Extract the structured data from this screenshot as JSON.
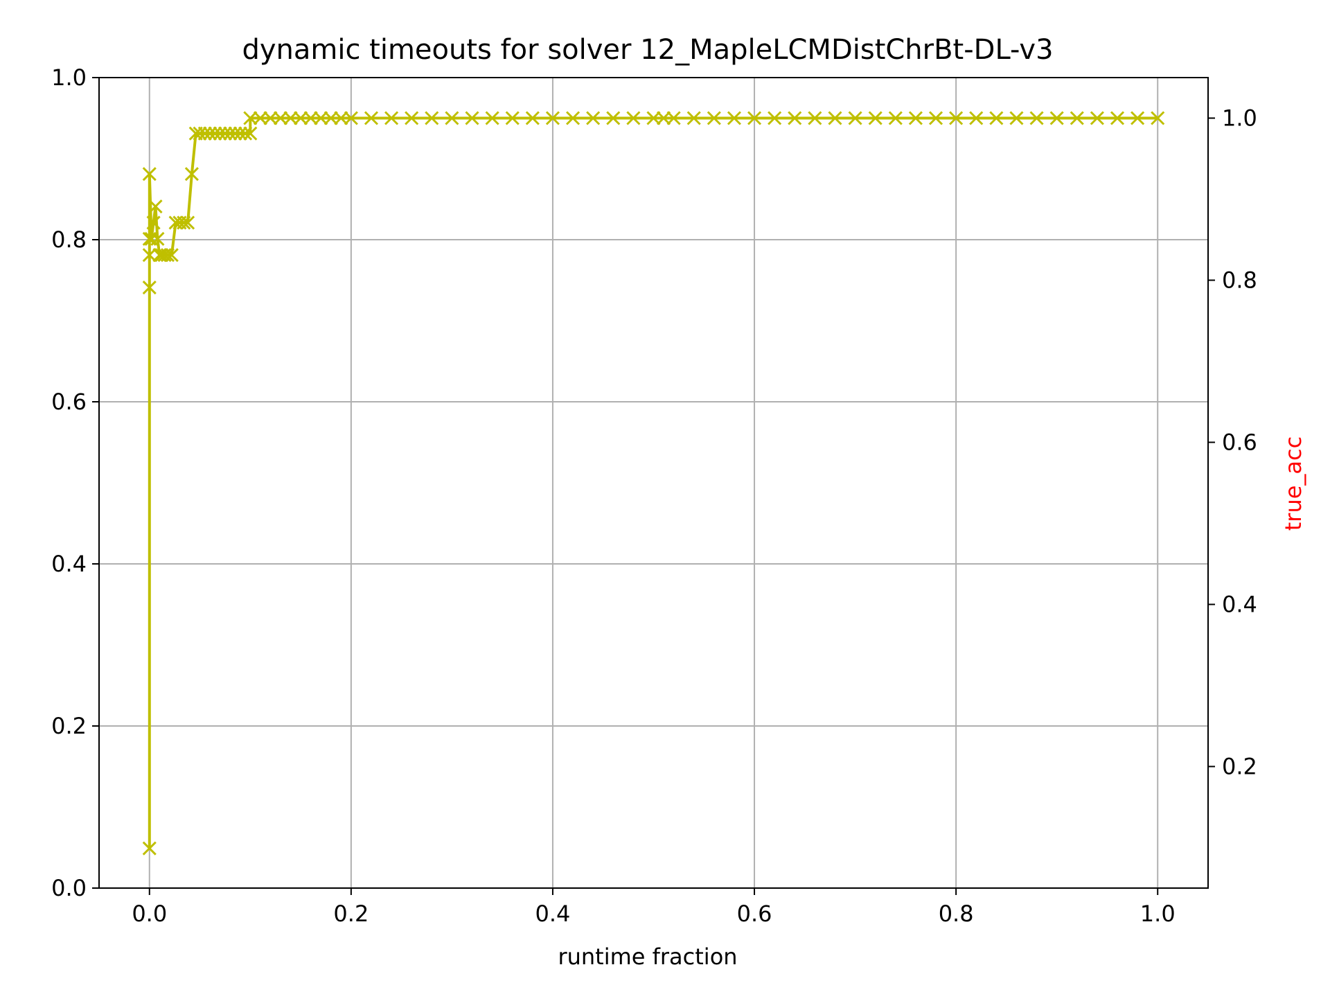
{
  "chart_data": {
    "type": "line",
    "title": "dynamic timeouts for solver 12_MapleLCMDistChrBt-DL-v3",
    "xlabel": "runtime fraction",
    "ylabel": "",
    "y2label": "true_acc",
    "xlim": [
      -0.05,
      1.05
    ],
    "ylim": [
      0.0,
      1.0
    ],
    "y2lim": [
      0.05,
      1.05
    ],
    "x_ticks": [
      "0.0",
      "0.2",
      "0.4",
      "0.6",
      "0.8",
      "1.0"
    ],
    "y_ticks": [
      "0.0",
      "0.2",
      "0.4",
      "0.6",
      "0.8",
      "1.0"
    ],
    "y2_ticks": [
      "0.2",
      "0.4",
      "0.6",
      "0.8",
      "1.0"
    ],
    "grid": true,
    "marker": "x",
    "series": [
      {
        "color": "#bfbf00",
        "axis": "right",
        "x": [
          0.0,
          0.0,
          0.0,
          0.0,
          0.0,
          0.002,
          0.004,
          0.006,
          0.008,
          0.01,
          0.012,
          0.015,
          0.018,
          0.022,
          0.026,
          0.03,
          0.034,
          0.038,
          0.042,
          0.046,
          0.05,
          0.055,
          0.06,
          0.065,
          0.07,
          0.075,
          0.08,
          0.085,
          0.09,
          0.095,
          0.1,
          0.1,
          0.11,
          0.12,
          0.13,
          0.14,
          0.15,
          0.16,
          0.17,
          0.18,
          0.19,
          0.2,
          0.22,
          0.24,
          0.26,
          0.28,
          0.3,
          0.32,
          0.34,
          0.36,
          0.38,
          0.4,
          0.42,
          0.44,
          0.46,
          0.48,
          0.5,
          0.51,
          0.52,
          0.54,
          0.56,
          0.58,
          0.6,
          0.62,
          0.64,
          0.66,
          0.68,
          0.7,
          0.72,
          0.74,
          0.76,
          0.78,
          0.8,
          0.82,
          0.84,
          0.86,
          0.88,
          0.9,
          0.92,
          0.94,
          0.96,
          0.98,
          1.0
        ],
        "y": [
          0.099,
          0.791,
          0.831,
          0.851,
          0.931,
          0.851,
          0.871,
          0.891,
          0.851,
          0.831,
          0.831,
          0.831,
          0.831,
          0.831,
          0.871,
          0.871,
          0.871,
          0.871,
          0.931,
          0.981,
          0.981,
          0.981,
          0.981,
          0.981,
          0.981,
          0.981,
          0.981,
          0.981,
          0.981,
          0.981,
          0.981,
          1.0,
          1.0,
          1.0,
          1.0,
          1.0,
          1.0,
          1.0,
          1.0,
          1.0,
          1.0,
          1.0,
          1.0,
          1.0,
          1.0,
          1.0,
          1.0,
          1.0,
          1.0,
          1.0,
          1.0,
          1.0,
          1.0,
          1.0,
          1.0,
          1.0,
          1.0,
          1.0,
          1.0,
          1.0,
          1.0,
          1.0,
          1.0,
          1.0,
          1.0,
          1.0,
          1.0,
          1.0,
          1.0,
          1.0,
          1.0,
          1.0,
          1.0,
          1.0,
          1.0,
          1.0,
          1.0,
          1.0,
          1.0,
          1.0,
          1.0,
          1.0,
          1.0
        ]
      }
    ]
  }
}
